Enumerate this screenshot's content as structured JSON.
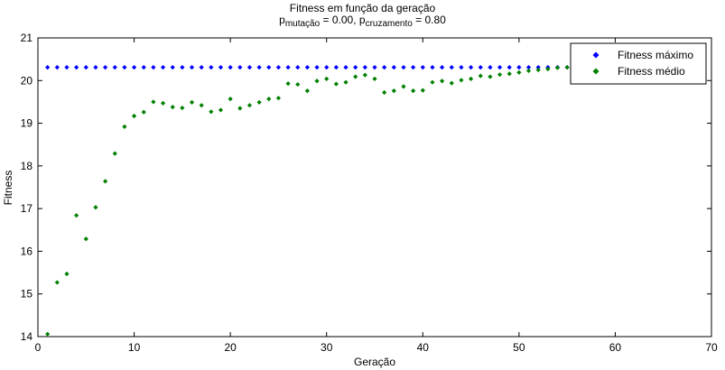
{
  "chart_data": {
    "type": "scatter",
    "title": "Fitness em função da geração",
    "subtitle": {
      "p1_base": "p",
      "p1_sub": "mutação",
      "p1_value": " = 0.00, ",
      "p2_base": "p",
      "p2_sub": "cruzamento",
      "p2_value": " = 0.80"
    },
    "xlabel": "Geração",
    "ylabel": "Fitness",
    "xlim": [
      0,
      70
    ],
    "ylim": [
      14,
      21
    ],
    "xticks": [
      0,
      10,
      20,
      30,
      40,
      50,
      60,
      70
    ],
    "yticks": [
      14,
      15,
      16,
      17,
      18,
      19,
      20,
      21
    ],
    "grid": false,
    "legend_position": "top-right",
    "x": [
      1,
      2,
      3,
      4,
      5,
      6,
      7,
      8,
      9,
      10,
      11,
      12,
      13,
      14,
      15,
      16,
      17,
      18,
      19,
      20,
      21,
      22,
      23,
      24,
      25,
      26,
      27,
      28,
      29,
      30,
      31,
      32,
      33,
      34,
      35,
      36,
      37,
      38,
      39,
      40,
      41,
      42,
      43,
      44,
      45,
      46,
      47,
      48,
      49,
      50,
      51,
      52,
      53,
      54,
      55
    ],
    "series": [
      {
        "name": "Fitness máximo",
        "color": "#0000ff",
        "values": [
          20.31,
          20.31,
          20.31,
          20.31,
          20.31,
          20.31,
          20.31,
          20.31,
          20.31,
          20.31,
          20.31,
          20.31,
          20.31,
          20.31,
          20.31,
          20.31,
          20.31,
          20.31,
          20.31,
          20.31,
          20.31,
          20.31,
          20.31,
          20.31,
          20.31,
          20.31,
          20.31,
          20.31,
          20.31,
          20.31,
          20.31,
          20.31,
          20.31,
          20.31,
          20.31,
          20.31,
          20.31,
          20.31,
          20.31,
          20.31,
          20.31,
          20.31,
          20.31,
          20.31,
          20.31,
          20.31,
          20.31,
          20.31,
          20.31,
          20.31,
          20.31,
          20.31,
          20.31,
          20.31,
          20.31
        ]
      },
      {
        "name": "Fitness médio",
        "color": "#008000",
        "values": [
          14.06,
          15.27,
          15.47,
          16.84,
          16.29,
          17.03,
          17.64,
          18.29,
          18.92,
          19.17,
          19.26,
          19.5,
          19.47,
          19.38,
          19.36,
          19.49,
          19.42,
          19.27,
          19.31,
          19.57,
          19.35,
          19.42,
          19.49,
          19.57,
          19.59,
          19.93,
          19.91,
          19.76,
          19.99,
          20.04,
          19.92,
          19.96,
          20.09,
          20.13,
          20.04,
          19.72,
          19.76,
          19.86,
          19.76,
          19.77,
          19.96,
          19.99,
          19.94,
          20.01,
          20.04,
          20.11,
          20.09,
          20.14,
          20.16,
          20.19,
          20.23,
          20.25,
          20.27,
          20.3,
          20.31
        ]
      }
    ]
  }
}
